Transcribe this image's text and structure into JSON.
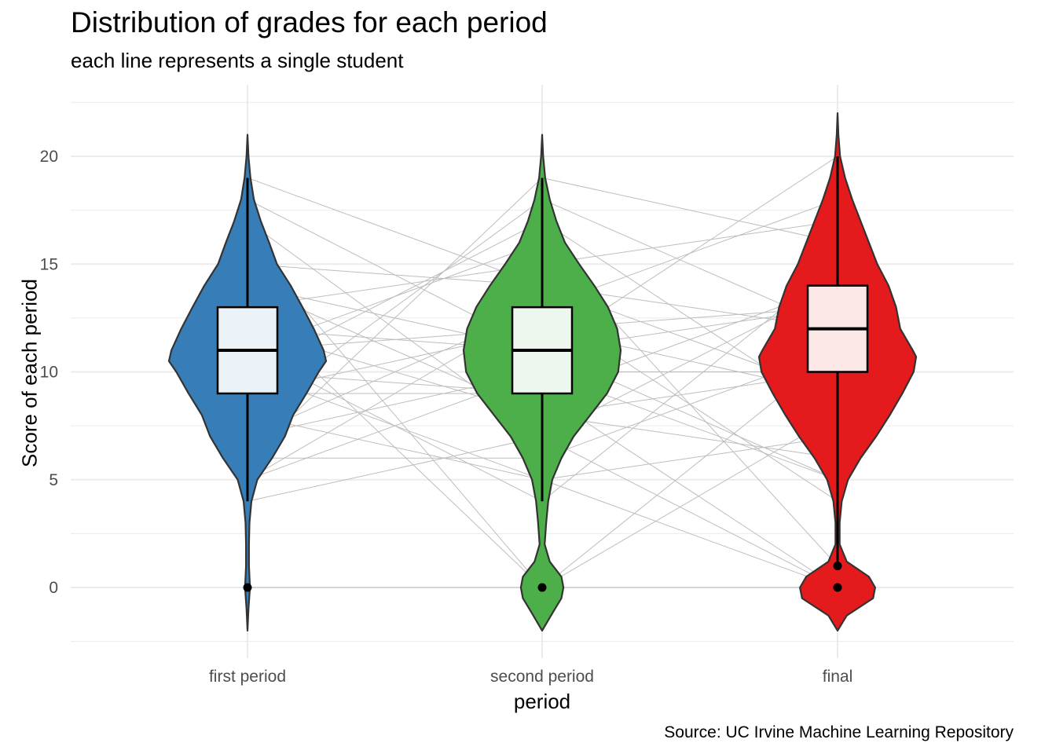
{
  "chart_data": {
    "type": "violin",
    "title": "Distribution of grades for each period",
    "subtitle": "each line represents a single student",
    "caption": "Source: UC Irvine Machine Learning Repository",
    "xlabel": "period",
    "ylabel": "Score of each period",
    "ylim": [
      -2.5,
      22.5
    ],
    "yticks": [
      0,
      5,
      10,
      15,
      20
    ],
    "grid": true,
    "categories": [
      "first period",
      "second period",
      "final"
    ],
    "series": [
      {
        "category": "first period",
        "color": "#377EB8",
        "density": [
          [
            -2,
            0
          ],
          [
            -1,
            0.02
          ],
          [
            0,
            0.05
          ],
          [
            1,
            0.03
          ],
          [
            2,
            0.03
          ],
          [
            3,
            0.04
          ],
          [
            4,
            0.08
          ],
          [
            5,
            0.2
          ],
          [
            6,
            0.5
          ],
          [
            7,
            0.76
          ],
          [
            8,
            0.93
          ],
          [
            9,
            1.2
          ],
          [
            10,
            1.45
          ],
          [
            10.5,
            1.6
          ],
          [
            11,
            1.55
          ],
          [
            12,
            1.35
          ],
          [
            13,
            1.12
          ],
          [
            14,
            0.88
          ],
          [
            15,
            0.6
          ],
          [
            16,
            0.44
          ],
          [
            17,
            0.27
          ],
          [
            18,
            0.13
          ],
          [
            19,
            0.06
          ],
          [
            20,
            0.02
          ],
          [
            21,
            0
          ]
        ],
        "box": {
          "q1": 9,
          "median": 11,
          "q3": 13
        },
        "values": [
          0,
          4,
          5,
          5,
          6,
          6,
          7,
          7,
          8,
          8,
          9,
          9,
          10,
          10,
          10,
          11,
          11,
          11,
          12,
          12,
          13,
          13,
          14,
          14,
          15,
          16,
          17,
          18,
          19
        ]
      },
      {
        "category": "second period",
        "color": "#4DAF4A",
        "density": [
          [
            -2,
            0
          ],
          [
            -1.2,
            0.2
          ],
          [
            -0.5,
            0.38
          ],
          [
            0,
            0.42
          ],
          [
            0.5,
            0.38
          ],
          [
            1.2,
            0.15
          ],
          [
            2,
            0.05
          ],
          [
            3,
            0.08
          ],
          [
            4,
            0.12
          ],
          [
            5,
            0.2
          ],
          [
            6,
            0.38
          ],
          [
            7,
            0.62
          ],
          [
            8,
            0.95
          ],
          [
            9,
            1.28
          ],
          [
            10,
            1.5
          ],
          [
            11,
            1.55
          ],
          [
            12,
            1.48
          ],
          [
            13,
            1.3
          ],
          [
            14,
            1.03
          ],
          [
            15,
            0.73
          ],
          [
            16,
            0.45
          ],
          [
            17,
            0.28
          ],
          [
            18,
            0.15
          ],
          [
            19,
            0.06
          ],
          [
            20,
            0.02
          ],
          [
            21,
            0
          ]
        ],
        "box": {
          "q1": 9,
          "median": 11,
          "q3": 13
        },
        "values": [
          0,
          0,
          0,
          4,
          5,
          5,
          6,
          7,
          7,
          8,
          8,
          9,
          9,
          10,
          10,
          11,
          11,
          11,
          12,
          12,
          13,
          13,
          14,
          14,
          15,
          16,
          17,
          18,
          19
        ]
      },
      {
        "category": "final",
        "color": "#E41A1C",
        "density": [
          [
            -2,
            0
          ],
          [
            -1.3,
            0.22
          ],
          [
            -0.5,
            0.85
          ],
          [
            0,
            0.9
          ],
          [
            0.5,
            0.75
          ],
          [
            1.2,
            0.22
          ],
          [
            2,
            0.05
          ],
          [
            3,
            0.05
          ],
          [
            4,
            0.1
          ],
          [
            5,
            0.25
          ],
          [
            6,
            0.55
          ],
          [
            7,
            0.92
          ],
          [
            8,
            1.25
          ],
          [
            9,
            1.55
          ],
          [
            10,
            1.82
          ],
          [
            10.7,
            1.88
          ],
          [
            11,
            1.8
          ],
          [
            12,
            1.5
          ],
          [
            13,
            1.4
          ],
          [
            14,
            1.22
          ],
          [
            15,
            0.95
          ],
          [
            16,
            0.75
          ],
          [
            17,
            0.55
          ],
          [
            18,
            0.35
          ],
          [
            19,
            0.18
          ],
          [
            20,
            0.06
          ],
          [
            21,
            0.02
          ],
          [
            22,
            0
          ]
        ],
        "box": {
          "q1": 10,
          "median": 12,
          "q3": 14
        },
        "values": [
          0,
          0,
          0,
          0,
          1,
          4,
          5,
          5,
          6,
          7,
          8,
          8,
          9,
          9,
          10,
          10,
          11,
          11,
          12,
          12,
          13,
          13,
          14,
          14,
          15,
          16,
          17,
          18,
          20
        ]
      }
    ]
  }
}
